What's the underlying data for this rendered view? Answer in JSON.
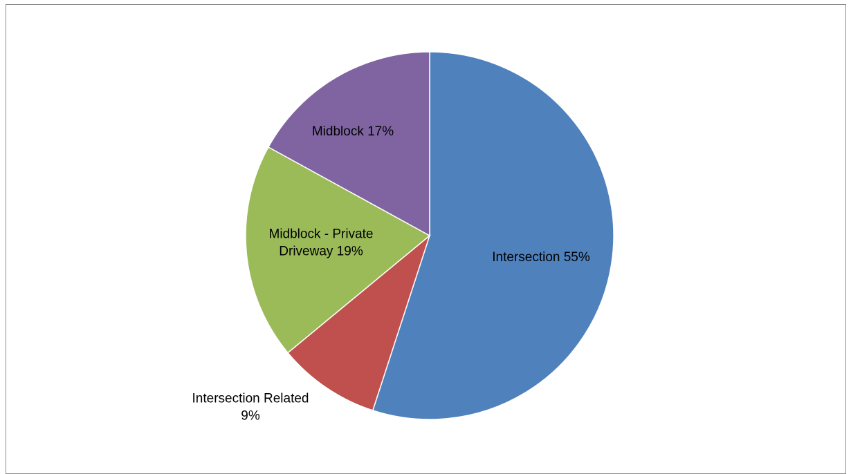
{
  "chart_data": {
    "type": "pie",
    "title": "",
    "slices": [
      {
        "name": "Intersection",
        "value": 55,
        "label_lines": [
          "Intersection 55%"
        ],
        "color": "#4F81BD"
      },
      {
        "name": "Intersection Related",
        "value": 9,
        "label_lines": [
          "Intersection Related",
          "9%"
        ],
        "color": "#C0504D"
      },
      {
        "name": "Midblock - Private Driveway",
        "value": 19,
        "label_lines": [
          "Midblock - Private",
          "Driveway 19%"
        ],
        "color": "#9BBB59"
      },
      {
        "name": "Midblock",
        "value": 17,
        "label_lines": [
          "Midblock 17%"
        ],
        "color": "#8064A2"
      }
    ],
    "start_angle": "12 o'clock",
    "direction": "clockwise",
    "legend": "none"
  }
}
